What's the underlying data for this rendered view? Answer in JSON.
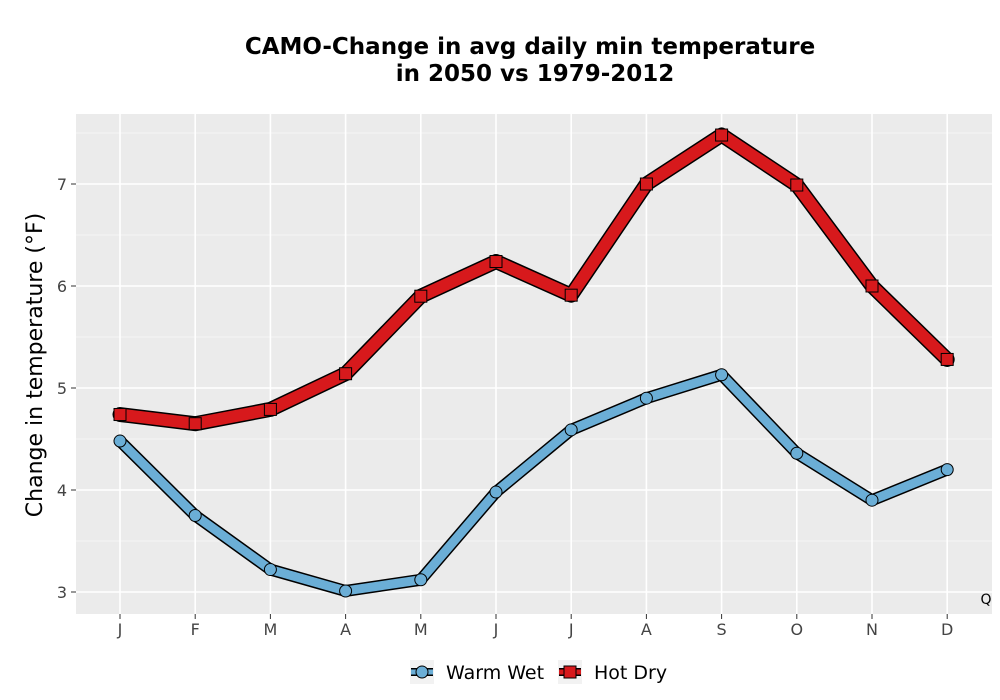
{
  "chart_data": {
    "type": "line",
    "title_line1": "CAMO-Change in avg daily min temperature",
    "title_line2": "in 2050 vs 1979-2012",
    "xlabel": "",
    "ylabel": "Change in temperature (°F)",
    "categories": [
      "J",
      "F",
      "M",
      "A",
      "M",
      "J",
      "J",
      "A",
      "S",
      "O",
      "N",
      "D"
    ],
    "ylim": [
      2.8,
      7.7
    ],
    "yticks": [
      3,
      4,
      5,
      6,
      7
    ],
    "grid": true,
    "legend_position": "bottom",
    "annotation": "Q",
    "series": [
      {
        "name": "Warm Wet",
        "marker": "circle",
        "color": "#6baed6",
        "values": [
          4.48,
          3.75,
          3.22,
          3.01,
          3.12,
          3.98,
          4.59,
          4.9,
          5.13,
          4.36,
          3.9,
          4.2
        ]
      },
      {
        "name": "Hot Dry",
        "marker": "square",
        "color": "#d7191c",
        "values": [
          4.74,
          4.65,
          4.79,
          5.14,
          5.9,
          6.24,
          5.91,
          7.0,
          7.48,
          6.99,
          6.0,
          5.28
        ]
      }
    ]
  }
}
